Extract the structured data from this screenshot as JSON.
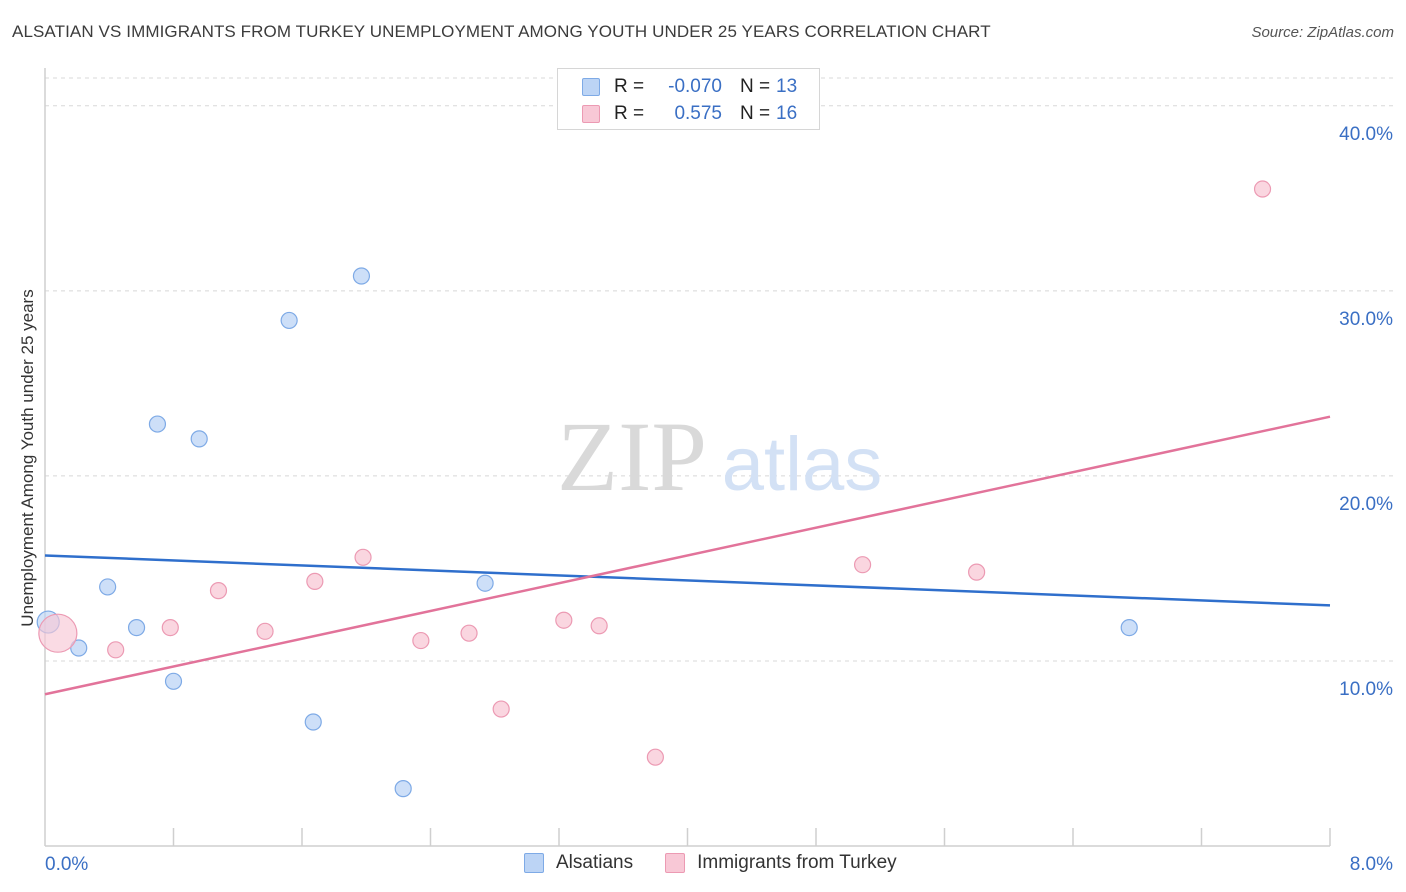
{
  "title": "ALSATIAN VS IMMIGRANTS FROM TURKEY UNEMPLOYMENT AMONG YOUTH UNDER 25 YEARS CORRELATION CHART",
  "source": "Source: ZipAtlas.com",
  "watermark": {
    "zip": "ZIP",
    "atlas": "atlas"
  },
  "legend": {
    "rows": [
      {
        "r_label": "R =",
        "r_value": "-0.070",
        "n_label": "N =",
        "n_value": "13"
      },
      {
        "r_label": "R =",
        "r_value": "0.575",
        "n_label": "N =",
        "n_value": "16"
      }
    ]
  },
  "bottom_legend": [
    "Alsatians",
    "Immigrants from Turkey"
  ],
  "colors": {
    "blue_fill": "#bcd4f5",
    "blue_stroke": "#7eaae6",
    "blue_line": "#2f6fcc",
    "pink_fill": "#f8c8d6",
    "pink_stroke": "#ec9ab3",
    "pink_line": "#e2739a",
    "tick_text": "#3a6fc4",
    "grid": "#d8d8d8"
  },
  "chart_data": {
    "type": "scatter",
    "title": "ALSATIAN VS IMMIGRANTS FROM TURKEY UNEMPLOYMENT AMONG YOUTH UNDER 25 YEARS CORRELATION CHART",
    "xlabel": "",
    "ylabel": "Unemployment Among Youth under 25 years",
    "xlim": [
      0,
      8
    ],
    "ylim": [
      0,
      41.5
    ],
    "x_tick_labels": [
      "0.0%",
      "8.0%"
    ],
    "y_ticks": [
      10,
      20,
      30,
      40
    ],
    "y_tick_labels": [
      "10.0%",
      "20.0%",
      "30.0%",
      "40.0%"
    ],
    "series": [
      {
        "name": "Alsatians",
        "color": "blue",
        "points": [
          {
            "x": 0.02,
            "y": 12.1,
            "big": true
          },
          {
            "x": 0.21,
            "y": 10.7
          },
          {
            "x": 0.39,
            "y": 14.0
          },
          {
            "x": 0.57,
            "y": 11.8
          },
          {
            "x": 0.7,
            "y": 22.8
          },
          {
            "x": 0.8,
            "y": 8.9
          },
          {
            "x": 0.96,
            "y": 22.0
          },
          {
            "x": 1.52,
            "y": 28.4
          },
          {
            "x": 1.67,
            "y": 6.7
          },
          {
            "x": 1.97,
            "y": 30.8
          },
          {
            "x": 2.23,
            "y": 3.1
          },
          {
            "x": 2.74,
            "y": 14.2
          },
          {
            "x": 6.75,
            "y": 11.8
          }
        ],
        "trend": {
          "x0": 0,
          "y0": 15.7,
          "x1": 8,
          "y1": 13.0
        }
      },
      {
        "name": "Immigrants from Turkey",
        "color": "pink",
        "points": [
          {
            "x": 0.08,
            "y": 11.5,
            "big": true
          },
          {
            "x": 0.44,
            "y": 10.6
          },
          {
            "x": 0.78,
            "y": 11.8
          },
          {
            "x": 1.08,
            "y": 13.8
          },
          {
            "x": 1.37,
            "y": 11.6
          },
          {
            "x": 1.68,
            "y": 14.3
          },
          {
            "x": 1.98,
            "y": 15.6
          },
          {
            "x": 2.34,
            "y": 11.1
          },
          {
            "x": 2.64,
            "y": 11.5
          },
          {
            "x": 2.84,
            "y": 7.4
          },
          {
            "x": 3.23,
            "y": 12.2
          },
          {
            "x": 3.45,
            "y": 11.9
          },
          {
            "x": 3.8,
            "y": 4.8
          },
          {
            "x": 5.09,
            "y": 15.2
          },
          {
            "x": 5.8,
            "y": 14.8
          },
          {
            "x": 7.58,
            "y": 35.5
          }
        ],
        "trend": {
          "x0": 0,
          "y0": 8.2,
          "x1": 8,
          "y1": 23.2
        }
      }
    ]
  }
}
